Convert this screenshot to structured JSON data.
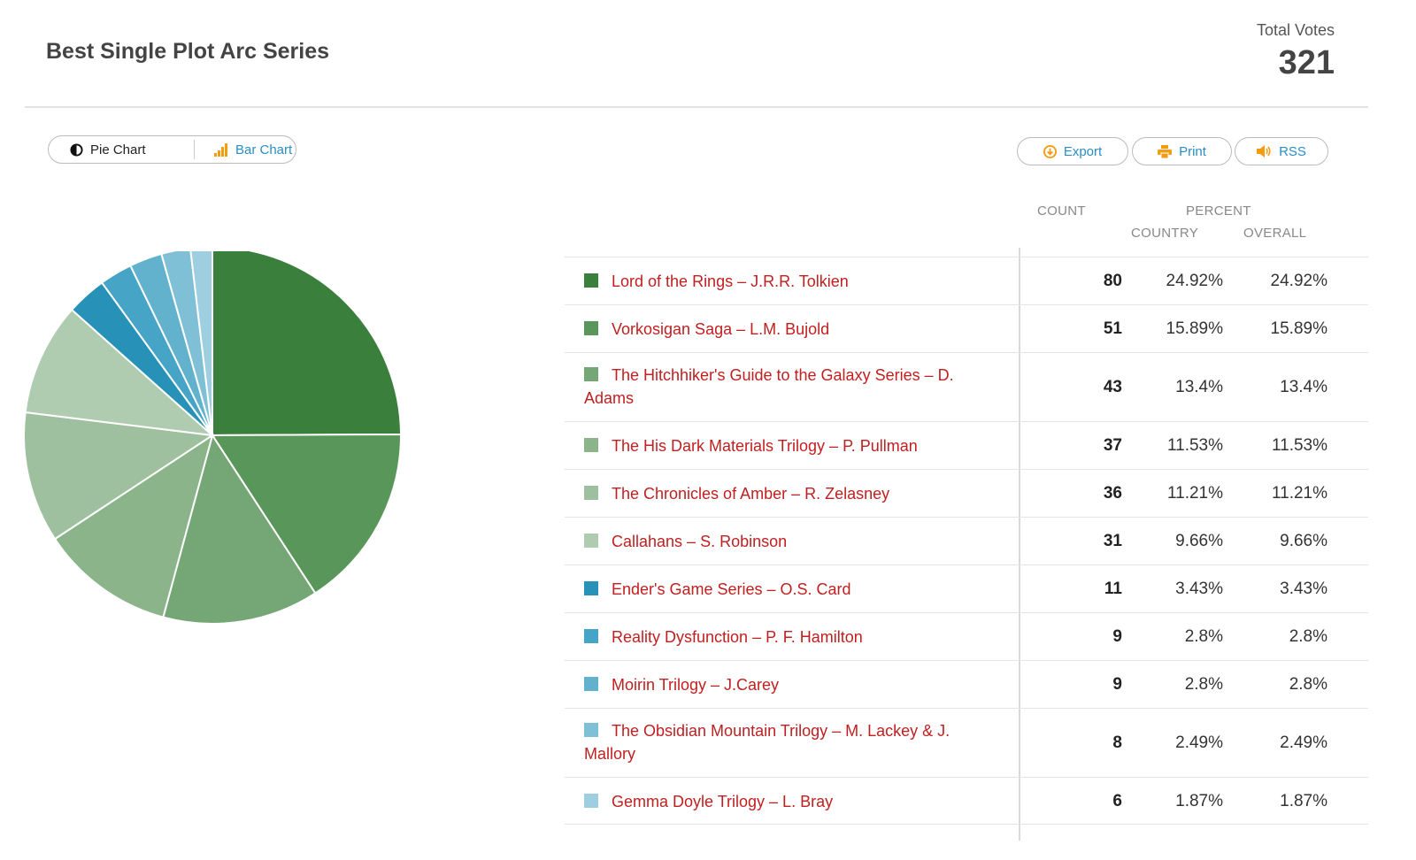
{
  "header": {
    "title": "Best Single Plot Arc Series",
    "total_votes_label": "Total Votes",
    "total_votes": "321"
  },
  "toggle": {
    "pie_label": "Pie Chart",
    "bar_label": "Bar Chart"
  },
  "actions": {
    "export_label": "Export",
    "print_label": "Print",
    "rss_label": "RSS"
  },
  "table": {
    "count_header": "COUNT",
    "percent_header": "PERCENT",
    "country_header": "COUNTRY",
    "overall_header": "OVERALL"
  },
  "chart_data": {
    "type": "pie",
    "title": "Best Single Plot Arc Series",
    "total": 321,
    "slices": [
      {
        "label": "Lord of the Rings – J.R.R. Tolkien",
        "count": "80",
        "value": 80,
        "pct_country": "24.92%",
        "pct_overall": "24.92%",
        "color": "#3a7f3b"
      },
      {
        "label": "Vorkosigan Saga – L.M. Bujold",
        "count": "51",
        "value": 51,
        "pct_country": "15.89%",
        "pct_overall": "15.89%",
        "color": "#589659"
      },
      {
        "label": "The Hitchhiker's Guide to the Galaxy Series – D. Adams",
        "count": "43",
        "value": 43,
        "pct_country": "13.4%",
        "pct_overall": "13.4%",
        "color": "#75a676"
      },
      {
        "label": "The His Dark Materials Trilogy – P. Pullman",
        "count": "37",
        "value": 37,
        "pct_country": "11.53%",
        "pct_overall": "11.53%",
        "color": "#8bb48b"
      },
      {
        "label": "The Chronicles of Amber – R. Zelasney",
        "count": "36",
        "value": 36,
        "pct_country": "11.21%",
        "pct_overall": "11.21%",
        "color": "#9fc09f"
      },
      {
        "label": "Callahans – S. Robinson",
        "count": "31",
        "value": 31,
        "pct_country": "9.66%",
        "pct_overall": "9.66%",
        "color": "#b0ccb0"
      },
      {
        "label": "Ender's Game Series – O.S. Card",
        "count": "11",
        "value": 11,
        "pct_country": "3.43%",
        "pct_overall": "3.43%",
        "color": "#2891b7"
      },
      {
        "label": "Reality Dysfunction – P. F. Hamilton",
        "count": "9",
        "value": 9,
        "pct_country": "2.8%",
        "pct_overall": "2.8%",
        "color": "#46a4c6"
      },
      {
        "label": "Moirin Trilogy – J.Carey",
        "count": "9",
        "value": 9,
        "pct_country": "2.8%",
        "pct_overall": "2.8%",
        "color": "#62b1cd"
      },
      {
        "label": "The Obsidian Mountain Trilogy – M. Lackey & J. Mallory",
        "count": "8",
        "value": 8,
        "pct_country": "2.49%",
        "pct_overall": "2.49%",
        "color": "#80c0d7"
      },
      {
        "label": "Gemma Doyle Trilogy – L. Bray",
        "count": "6",
        "value": 6,
        "pct_country": "1.87%",
        "pct_overall": "1.87%",
        "color": "#9dcfe0"
      }
    ],
    "legend": "right"
  }
}
